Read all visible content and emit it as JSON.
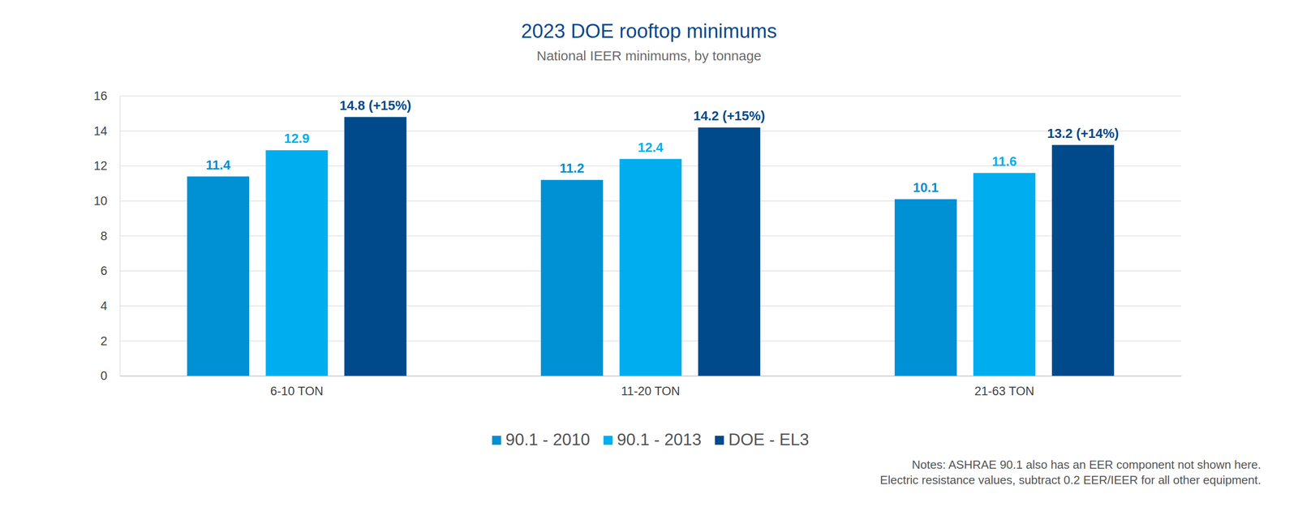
{
  "chart_data": {
    "type": "bar",
    "title": "2023 DOE rooftop minimums",
    "subtitle": "National IEER minimums, by tonnage",
    "categories": [
      "6-10 TON",
      "11-20 TON",
      "21-63 TON"
    ],
    "series": [
      {
        "name": "90.1 - 2010",
        "color": "#0090d4",
        "values": [
          11.4,
          11.2,
          10.1
        ]
      },
      {
        "name": "90.1 - 2013",
        "color": "#00aeef",
        "values": [
          12.9,
          12.4,
          11.6
        ]
      },
      {
        "name": "DOE - EL3",
        "color": "#004a8c",
        "values": [
          14.8,
          14.2,
          13.2
        ],
        "value_labels": [
          "14.8 (+15%)",
          "14.2 (+15%)",
          "13.2 (+14%)"
        ]
      }
    ],
    "ylim": [
      0,
      16
    ],
    "yticks": [
      0,
      2,
      4,
      6,
      8,
      10,
      12,
      14,
      16
    ],
    "grid": true,
    "data_labels": true,
    "legend": "bottom",
    "annotations": [
      "Notes: ASHRAE 90.1 also has an EER component not shown here.",
      "Electric resistance values, subtract 0.2 EER/IEER for all other equipment."
    ]
  }
}
